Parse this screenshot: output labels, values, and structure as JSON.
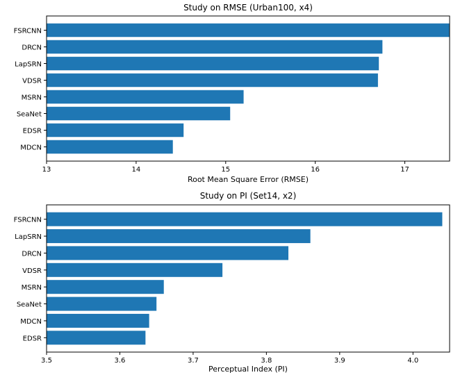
{
  "chart_data": [
    {
      "type": "bar",
      "orientation": "horizontal",
      "title": "Study on RMSE (Urban100, x4)",
      "xlabel": "Root Mean Square Error (RMSE)",
      "ylabel": "",
      "categories": [
        "FSRCNN",
        "DRCN",
        "LapSRN",
        "VDSR",
        "MSRN",
        "SeaNet",
        "EDSR",
        "MDCN"
      ],
      "values": [
        17.52,
        16.75,
        16.71,
        16.7,
        15.2,
        15.05,
        14.53,
        14.41
      ],
      "xlim": [
        13,
        17.5
      ],
      "xticks": [
        "13",
        "14",
        "15",
        "16",
        "17"
      ],
      "xtick_values": [
        13,
        14,
        15,
        16,
        17
      ],
      "color": "#1f77b4",
      "grid": false
    },
    {
      "type": "bar",
      "orientation": "horizontal",
      "title": "Study on PI (Set14, x2)",
      "xlabel": "Perceptual Index (PI)",
      "ylabel": "",
      "categories": [
        "FSRCNN",
        "LapSRN",
        "DRCN",
        "VDSR",
        "MSRN",
        "SeaNet",
        "MDCN",
        "EDSR"
      ],
      "values": [
        4.04,
        3.86,
        3.83,
        3.74,
        3.66,
        3.65,
        3.64,
        3.635
      ],
      "xlim": [
        3.5,
        4.05
      ],
      "xticks": [
        "3.5",
        "3.6",
        "3.7",
        "3.8",
        "3.9",
        "4.0"
      ],
      "xtick_values": [
        3.5,
        3.6,
        3.7,
        3.8,
        3.9,
        4.0
      ],
      "color": "#1f77b4",
      "grid": false
    }
  ]
}
